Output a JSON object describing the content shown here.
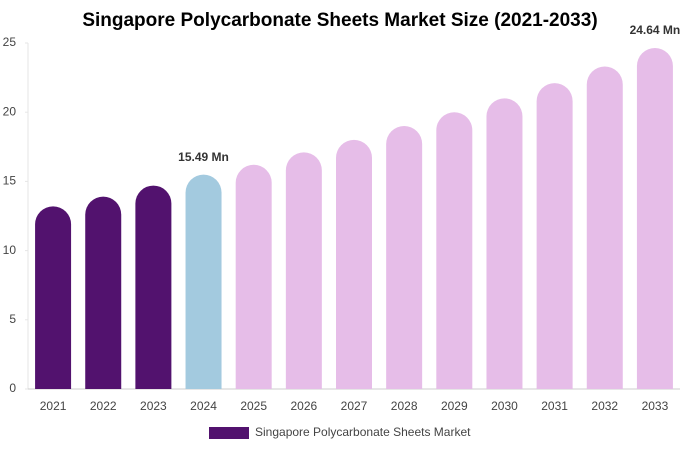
{
  "chart_data": {
    "type": "bar",
    "title": "Singapore Polycarbonate Sheets Market Size (2021-2033)",
    "categories": [
      "2021",
      "2022",
      "2023",
      "2024",
      "2025",
      "2026",
      "2027",
      "2028",
      "2029",
      "2030",
      "2031",
      "2032",
      "2033"
    ],
    "series": [
      {
        "name": "Singapore Polycarbonate Sheets Market",
        "color": "#52126e",
        "colors": [
          "#52126e",
          "#52126e",
          "#52126e",
          "#a3cadf",
          "#e6bde8",
          "#e6bde8",
          "#e6bde8",
          "#e6bde8",
          "#e6bde8",
          "#e6bde8",
          "#e6bde8",
          "#e6bde8",
          "#e6bde8"
        ],
        "values": [
          13.2,
          13.9,
          14.7,
          15.49,
          16.2,
          17.1,
          18.0,
          19.0,
          20.0,
          21.0,
          22.1,
          23.3,
          24.64
        ],
        "value_labels": [
          null,
          null,
          null,
          "15.49 Mn",
          null,
          null,
          null,
          null,
          null,
          null,
          null,
          null,
          "24.64 Mn"
        ]
      }
    ],
    "ylim": [
      0,
      25
    ],
    "yticks": [
      0,
      5,
      10,
      15,
      20,
      25
    ],
    "grid": false,
    "legend": "bottom"
  }
}
